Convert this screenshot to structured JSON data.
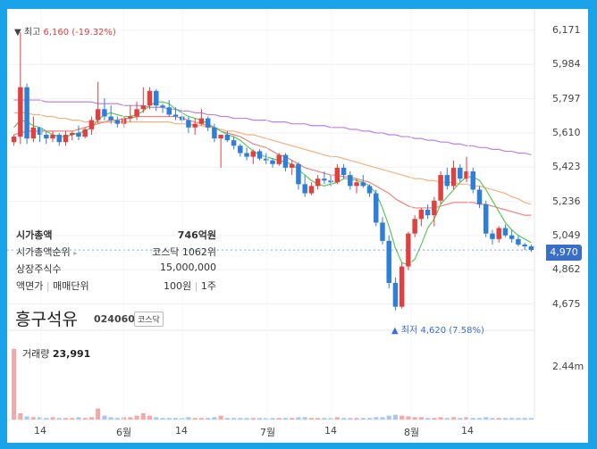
{
  "stock": {
    "name": "흥구석유",
    "code": "024060",
    "market": "코스닥"
  },
  "info": {
    "market_cap_label": "시가총액",
    "market_cap_value": "746억원",
    "rank_label": "시가총액순위",
    "rank_value": "코스닥 1062위",
    "shares_label": "상장주식수",
    "shares_value": "15,000,000",
    "par_label": "액면가",
    "unit_label": "매매단위",
    "par_value": "100원",
    "unit_value": "1주"
  },
  "highlow": {
    "high_prefix": "▼ 최고",
    "high_value": "6,160 (-19.32%)",
    "low_prefix": "▲ 최저",
    "low_value": "4,620 (7.58%)"
  },
  "current_price": "4,970",
  "volume": {
    "label": "거래량",
    "value": "23,991",
    "axis_label": "2.44m"
  },
  "colors": {
    "up": "#e04040",
    "down": "#2f7fd8",
    "ma5": "#5cc85c",
    "ma20": "#f08080",
    "ma60": "#f4b080",
    "ma120": "#c080e0",
    "accent": "#1aa3e8"
  },
  "chart_data": {
    "type": "candlestick",
    "y_ticks": [
      "6,171",
      "5,984",
      "5,797",
      "5,610",
      "5,423",
      "5,236",
      "5,049",
      "4,862",
      "4,675"
    ],
    "y_tick_values": [
      6171,
      5984,
      5797,
      5610,
      5423,
      5236,
      5049,
      4862,
      4675
    ],
    "ylim": [
      4580,
      6210
    ],
    "x_ticks": [
      "14",
      "6월",
      "14",
      "7월",
      "14",
      "8월",
      "14"
    ],
    "candles": [
      [
        5560,
        5600,
        5540,
        5590
      ],
      [
        5590,
        6160,
        5550,
        5860
      ],
      [
        5860,
        5880,
        5550,
        5580
      ],
      [
        5580,
        5700,
        5560,
        5640
      ],
      [
        5640,
        5640,
        5560,
        5600
      ],
      [
        5600,
        5620,
        5550,
        5580
      ],
      [
        5580,
        5620,
        5560,
        5600
      ],
      [
        5600,
        5610,
        5540,
        5560
      ],
      [
        5560,
        5620,
        5540,
        5600
      ],
      [
        5600,
        5620,
        5570,
        5610
      ],
      [
        5610,
        5650,
        5570,
        5590
      ],
      [
        5590,
        5640,
        5580,
        5630
      ],
      [
        5630,
        5700,
        5600,
        5680
      ],
      [
        5680,
        5890,
        5660,
        5740
      ],
      [
        5740,
        5800,
        5680,
        5700
      ],
      [
        5700,
        5760,
        5660,
        5680
      ],
      [
        5680,
        5700,
        5640,
        5660
      ],
      [
        5660,
        5700,
        5640,
        5690
      ],
      [
        5690,
        5760,
        5670,
        5700
      ],
      [
        5700,
        5780,
        5680,
        5740
      ],
      [
        5740,
        5860,
        5720,
        5760
      ],
      [
        5760,
        5860,
        5740,
        5840
      ],
      [
        5840,
        5850,
        5730,
        5760
      ],
      [
        5760,
        5770,
        5720,
        5750
      ],
      [
        5750,
        5790,
        5700,
        5710
      ],
      [
        5710,
        5750,
        5680,
        5700
      ],
      [
        5700,
        5740,
        5660,
        5680
      ],
      [
        5680,
        5700,
        5610,
        5640
      ],
      [
        5640,
        5690,
        5600,
        5660
      ],
      [
        5660,
        5740,
        5650,
        5690
      ],
      [
        5690,
        5700,
        5620,
        5640
      ],
      [
        5640,
        5660,
        5560,
        5580
      ],
      [
        5580,
        5600,
        5420,
        5600
      ],
      [
        5600,
        5620,
        5560,
        5570
      ],
      [
        5570,
        5590,
        5520,
        5540
      ],
      [
        5540,
        5550,
        5480,
        5500
      ],
      [
        5500,
        5530,
        5460,
        5480
      ],
      [
        5480,
        5520,
        5440,
        5510
      ],
      [
        5510,
        5520,
        5460,
        5470
      ],
      [
        5470,
        5500,
        5440,
        5460
      ],
      [
        5460,
        5470,
        5420,
        5440
      ],
      [
        5440,
        5500,
        5430,
        5490
      ],
      [
        5490,
        5500,
        5400,
        5420
      ],
      [
        5420,
        5460,
        5380,
        5440
      ],
      [
        5440,
        5450,
        5300,
        5330
      ],
      [
        5330,
        5380,
        5260,
        5280
      ],
      [
        5280,
        5340,
        5270,
        5320
      ],
      [
        5320,
        5380,
        5300,
        5360
      ],
      [
        5360,
        5400,
        5330,
        5350
      ],
      [
        5350,
        5380,
        5320,
        5340
      ],
      [
        5340,
        5440,
        5330,
        5420
      ],
      [
        5420,
        5440,
        5360,
        5380
      ],
      [
        5380,
        5400,
        5300,
        5320
      ],
      [
        5320,
        5360,
        5280,
        5340
      ],
      [
        5340,
        5380,
        5310,
        5320
      ],
      [
        5320,
        5330,
        5260,
        5280
      ],
      [
        5280,
        5300,
        5100,
        5120
      ],
      [
        5120,
        5150,
        5000,
        5020
      ],
      [
        5020,
        5050,
        4760,
        4790
      ],
      [
        4790,
        4820,
        4640,
        4660
      ],
      [
        4660,
        4900,
        4650,
        4880
      ],
      [
        4880,
        5070,
        4860,
        5060
      ],
      [
        5060,
        5160,
        5040,
        5140
      ],
      [
        5140,
        5200,
        5100,
        5190
      ],
      [
        5190,
        5220,
        5140,
        5160
      ],
      [
        5160,
        5260,
        5100,
        5240
      ],
      [
        5240,
        5400,
        5220,
        5380
      ],
      [
        5380,
        5420,
        5300,
        5320
      ],
      [
        5320,
        5460,
        5300,
        5420
      ],
      [
        5420,
        5440,
        5340,
        5360
      ],
      [
        5360,
        5480,
        5340,
        5400
      ],
      [
        5400,
        5420,
        5280,
        5300
      ],
      [
        5300,
        5320,
        5200,
        5220
      ],
      [
        5220,
        5240,
        5040,
        5060
      ],
      [
        5060,
        5080,
        5000,
        5030
      ],
      [
        5030,
        5100,
        5010,
        5090
      ],
      [
        5090,
        5110,
        5040,
        5050
      ],
      [
        5050,
        5080,
        5010,
        5030
      ],
      [
        5030,
        5050,
        4990,
        5000
      ],
      [
        5000,
        5010,
        4970,
        4990
      ],
      [
        4990,
        5000,
        4960,
        4970
      ]
    ],
    "ma5": [
      5640,
      5680,
      5670,
      5650,
      5640,
      5620,
      5600,
      5590,
      5590,
      5600,
      5610,
      5620,
      5640,
      5680,
      5710,
      5720,
      5710,
      5700,
      5700,
      5710,
      5730,
      5760,
      5780,
      5780,
      5770,
      5740,
      5720,
      5700,
      5690,
      5680,
      5660,
      5640,
      5620,
      5600,
      5590,
      5570,
      5540,
      5510,
      5490,
      5480,
      5470,
      5460,
      5450,
      5440,
      5410,
      5380,
      5350,
      5330,
      5320,
      5330,
      5340,
      5360,
      5360,
      5350,
      5340,
      5320,
      5280,
      5200,
      5100,
      4980,
      4900,
      4890,
      4920,
      5000,
      5090,
      5140,
      5220,
      5260,
      5300,
      5340,
      5370,
      5370,
      5350,
      5300,
      5240,
      5180,
      5120,
      5080,
      5050,
      5030,
      5010
    ],
    "ma20": [
      5600,
      5610,
      5620,
      5620,
      5620,
      5620,
      5620,
      5620,
      5620,
      5620,
      5630,
      5640,
      5650,
      5660,
      5670,
      5680,
      5680,
      5690,
      5690,
      5700,
      5700,
      5700,
      5700,
      5700,
      5700,
      5700,
      5690,
      5680,
      5670,
      5660,
      5650,
      5640,
      5620,
      5610,
      5600,
      5590,
      5570,
      5550,
      5540,
      5530,
      5510,
      5490,
      5480,
      5460,
      5440,
      5420,
      5410,
      5400,
      5390,
      5380,
      5380,
      5370,
      5370,
      5360,
      5350,
      5340,
      5320,
      5300,
      5280,
      5250,
      5230,
      5210,
      5200,
      5200,
      5200,
      5200,
      5210,
      5220,
      5230,
      5230,
      5230,
      5230,
      5220,
      5220,
      5210,
      5200,
      5190,
      5180,
      5170,
      5160,
      5160
    ],
    "ma60": [
      5720,
      5720,
      5720,
      5710,
      5710,
      5700,
      5700,
      5690,
      5690,
      5680,
      5680,
      5670,
      5670,
      5670,
      5670,
      5670,
      5670,
      5670,
      5670,
      5670,
      5670,
      5670,
      5670,
      5670,
      5670,
      5660,
      5660,
      5660,
      5650,
      5650,
      5640,
      5640,
      5630,
      5620,
      5620,
      5610,
      5600,
      5600,
      5590,
      5580,
      5570,
      5560,
      5550,
      5540,
      5530,
      5520,
      5510,
      5500,
      5490,
      5480,
      5480,
      5470,
      5460,
      5450,
      5440,
      5430,
      5420,
      5410,
      5400,
      5390,
      5380,
      5370,
      5360,
      5360,
      5350,
      5350,
      5340,
      5340,
      5340,
      5330,
      5330,
      5320,
      5320,
      5310,
      5300,
      5290,
      5280,
      5260,
      5250,
      5230,
      5220
    ],
    "ma120": [
      5790,
      5790,
      5790,
      5790,
      5790,
      5780,
      5780,
      5780,
      5780,
      5780,
      5780,
      5780,
      5780,
      5770,
      5770,
      5770,
      5770,
      5760,
      5760,
      5760,
      5760,
      5750,
      5750,
      5750,
      5740,
      5740,
      5730,
      5730,
      5720,
      5720,
      5710,
      5710,
      5700,
      5700,
      5690,
      5690,
      5690,
      5680,
      5680,
      5680,
      5670,
      5670,
      5670,
      5660,
      5660,
      5660,
      5650,
      5650,
      5650,
      5640,
      5640,
      5640,
      5630,
      5630,
      5620,
      5620,
      5610,
      5610,
      5600,
      5600,
      5590,
      5590,
      5580,
      5580,
      5570,
      5570,
      5560,
      5560,
      5550,
      5550,
      5540,
      5540,
      5530,
      5530,
      5520,
      5520,
      5510,
      5510,
      5500,
      5500,
      5490
    ],
    "volume_ratio": [
      0.9,
      0.08,
      0.04,
      0.03,
      0.03,
      0.02,
      0.03,
      0.02,
      0.02,
      0.02,
      0.03,
      0.02,
      0.03,
      0.14,
      0.05,
      0.03,
      0.02,
      0.03,
      0.03,
      0.05,
      0.08,
      0.05,
      0.03,
      0.02,
      0.02,
      0.02,
      0.02,
      0.03,
      0.02,
      0.02,
      0.02,
      0.03,
      0.05,
      0.02,
      0.02,
      0.02,
      0.02,
      0.02,
      0.02,
      0.02,
      0.02,
      0.02,
      0.02,
      0.02,
      0.03,
      0.03,
      0.02,
      0.02,
      0.02,
      0.02,
      0.03,
      0.02,
      0.02,
      0.02,
      0.02,
      0.02,
      0.03,
      0.03,
      0.05,
      0.06,
      0.05,
      0.04,
      0.03,
      0.03,
      0.02,
      0.02,
      0.03,
      0.02,
      0.03,
      0.02,
      0.03,
      0.02,
      0.02,
      0.03,
      0.02,
      0.02,
      0.02,
      0.02,
      0.02,
      0.02,
      0.02
    ]
  }
}
